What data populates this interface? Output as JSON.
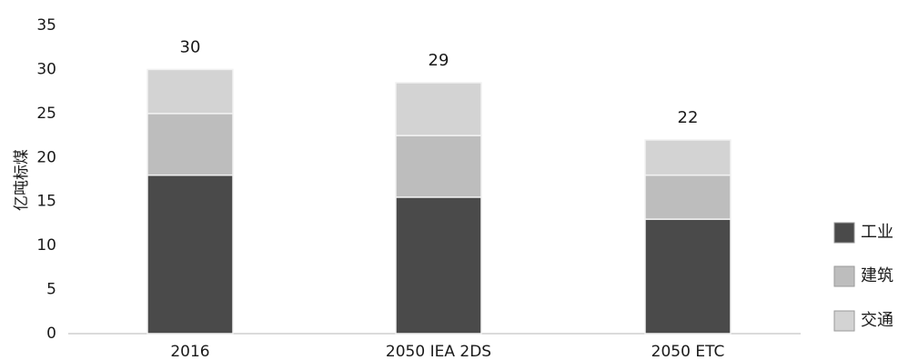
{
  "chart_data": {
    "type": "bar",
    "stacked": true,
    "categories": [
      "2016",
      "2050 IEA 2DS",
      "2050 ETC"
    ],
    "series": [
      {
        "name": "工业",
        "values": [
          18,
          15.5,
          13
        ],
        "color": "#4a4a4a"
      },
      {
        "name": "建筑",
        "values": [
          7,
          7,
          5
        ],
        "color": "#bdbdbd"
      },
      {
        "name": "交通",
        "values": [
          5,
          6,
          4
        ],
        "color": "#d3d3d3"
      }
    ],
    "totals": [
      "30",
      "29",
      "22"
    ],
    "ylabel": "亿吨标煤",
    "xlabel": "",
    "title": "",
    "ylim": [
      0,
      35
    ],
    "yticks": [
      "0",
      "5",
      "10",
      "15",
      "20",
      "25",
      "30",
      "35"
    ],
    "grid": false,
    "legend_position": "right"
  }
}
